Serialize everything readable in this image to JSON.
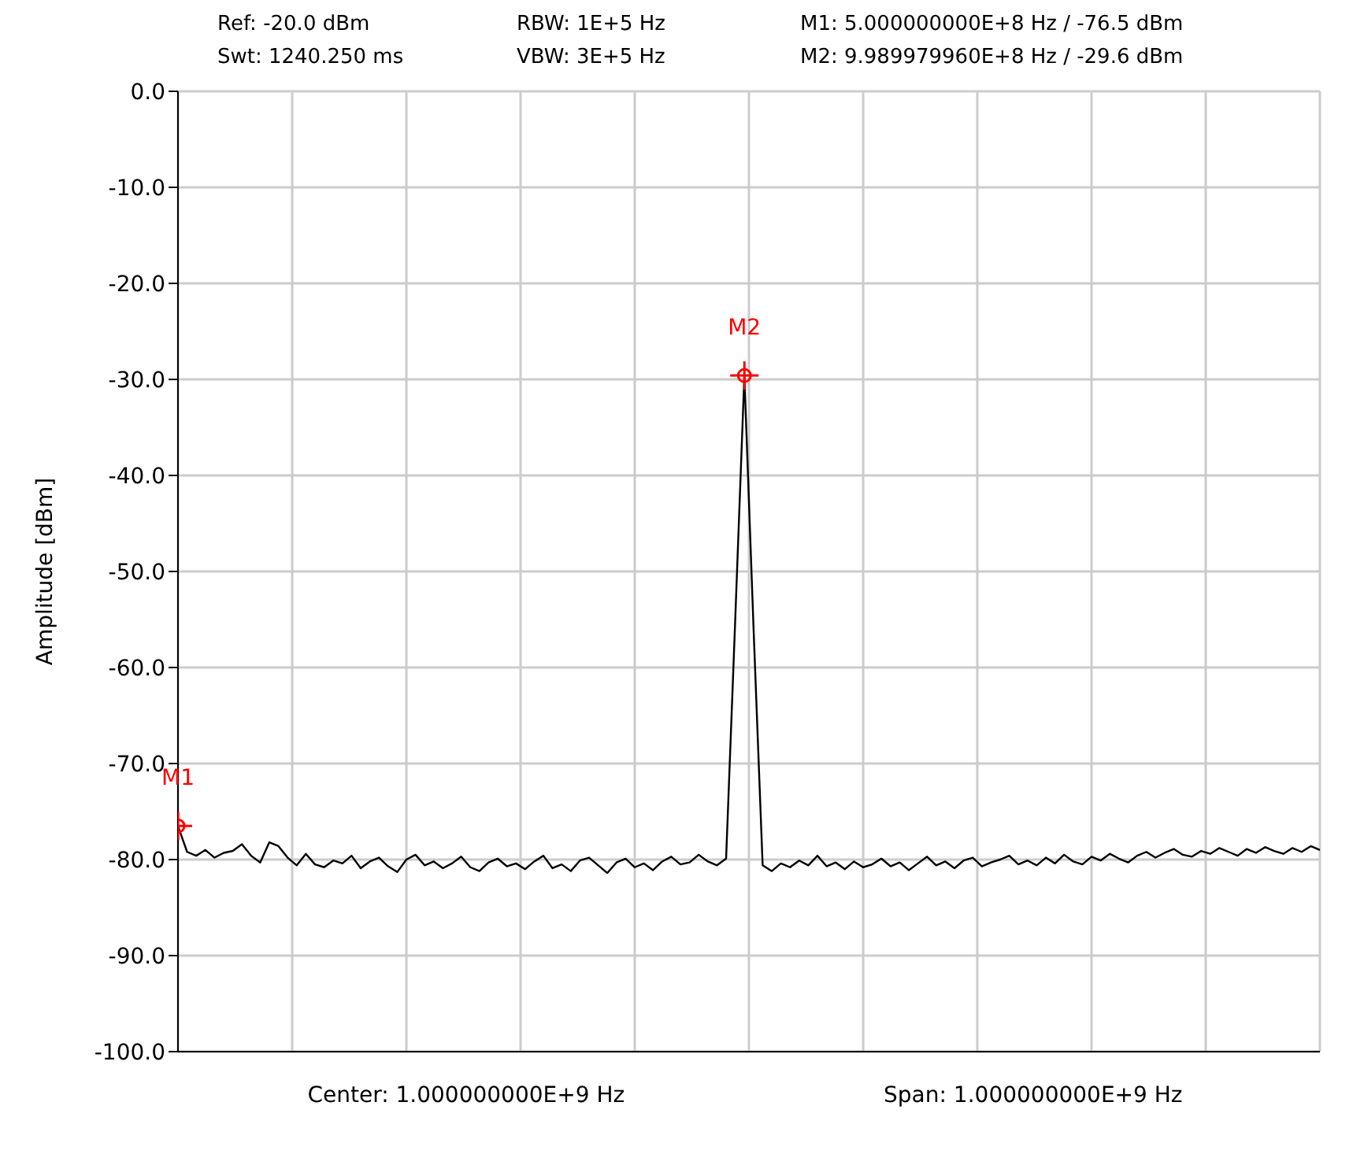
{
  "chart_data": {
    "type": "line",
    "ylabel": "Amplitude [dBm]",
    "annotations": [
      "Ref:  -20.0 dBm",
      "RBW: 1E+5 Hz",
      "M1: 5.000000000E+8 Hz / -76.5 dBm",
      "Swt: 1240.250 ms",
      "VBW: 3E+5 Hz",
      "M2: 9.989979960E+8 Hz / -29.6 dBm",
      "Center: 1.000000000E+9 Hz",
      "Span: 1.000000000E+9 Hz",
      "M1",
      "M2"
    ],
    "categories": [
      null,
      null,
      null,
      null,
      null,
      null,
      null,
      null,
      null,
      null,
      null,
      null,
      null,
      null,
      null,
      null,
      null,
      null,
      null,
      null,
      null,
      null,
      null,
      null,
      null,
      null,
      null,
      null,
      null,
      null,
      null,
      null,
      null,
      null,
      null,
      null,
      null,
      null,
      null,
      null,
      null,
      null,
      null,
      null,
      null,
      null,
      null,
      null,
      null,
      null,
      null,
      null,
      null,
      null,
      null,
      null,
      null,
      null,
      null,
      null,
      null,
      null,
      null,
      null,
      null,
      null,
      null,
      null,
      null,
      null,
      null,
      null,
      null,
      null,
      null,
      null,
      null,
      null,
      null,
      null,
      null,
      null,
      null,
      null,
      null,
      null,
      null,
      null,
      null,
      null,
      null,
      null,
      null,
      null,
      null,
      null,
      null,
      null,
      null,
      null,
      null,
      null,
      null,
      null,
      null,
      null,
      null,
      null,
      null,
      null,
      null,
      null,
      null,
      null,
      null,
      null,
      null,
      null,
      null,
      null,
      null,
      null,
      null,
      null,
      null,
      null
    ],
    "ylim": [
      -100,
      0
    ],
    "yticks": [
      {
        "value": 0,
        "label": "0.0"
      },
      {
        "value": -10,
        "label": "-10.0"
      },
      {
        "value": -20,
        "label": "-20.0"
      },
      {
        "value": -30,
        "label": "-30.0"
      },
      {
        "value": -40,
        "label": "-40.0"
      },
      {
        "value": -50,
        "label": "-50.0"
      },
      {
        "value": -60,
        "label": "-60.0"
      },
      {
        "value": -70,
        "label": "-70.0"
      },
      {
        "value": -80,
        "label": "-80.0"
      },
      {
        "value": -90,
        "label": "-90.0"
      },
      {
        "value": -100,
        "label": "-100.0"
      }
    ],
    "tick_labels": "y",
    "grid": true,
    "series": [
      {
        "color": "#000000",
        "marker": "none",
        "line_style": "solid",
        "values": [
          -76.5,
          -79.2,
          -79.6,
          -79.0,
          -79.8,
          -79.3,
          -79.1,
          -78.4,
          -79.6,
          -80.3,
          -78.2,
          -78.6,
          -79.8,
          -80.6,
          -79.4,
          -80.5,
          -80.8,
          -80.1,
          -80.4,
          -79.6,
          -80.9,
          -80.2,
          -79.8,
          -80.7,
          -81.3,
          -80.0,
          -79.5,
          -80.6,
          -80.2,
          -80.9,
          -80.4,
          -79.7,
          -80.8,
          -81.2,
          -80.3,
          -79.9,
          -80.7,
          -80.4,
          -81.0,
          -80.2,
          -79.6,
          -80.9,
          -80.5,
          -81.2,
          -80.1,
          -79.8,
          -80.6,
          -81.4,
          -80.3,
          -79.9,
          -80.8,
          -80.4,
          -81.1,
          -80.2,
          -79.7,
          -80.5,
          -80.3,
          -79.5,
          -80.2,
          -80.6,
          -79.9,
          -55.0,
          -29.6,
          -55.8,
          -80.6,
          -81.2,
          -80.4,
          -80.8,
          -80.1,
          -80.6,
          -79.6,
          -80.7,
          -80.3,
          -81.0,
          -80.2,
          -80.8,
          -80.5,
          -79.9,
          -80.7,
          -80.3,
          -81.1,
          -80.4,
          -79.7,
          -80.6,
          -80.2,
          -80.9,
          -80.1,
          -79.8,
          -80.7,
          -80.3,
          -80.0,
          -79.6,
          -80.5,
          -80.1,
          -80.6,
          -79.8,
          -80.4,
          -79.5,
          -80.2,
          -80.5,
          -79.7,
          -80.1,
          -79.4,
          -79.9,
          -80.3,
          -79.6,
          -79.2,
          -79.8,
          -79.3,
          -78.9,
          -79.5,
          -79.7,
          -79.1,
          -79.4,
          -78.8,
          -79.2,
          -79.6,
          -78.9,
          -79.3,
          -78.7,
          -79.1,
          -79.4,
          -78.8,
          -79.2,
          -78.6,
          -79.0
        ]
      },
      {
        "type": "scatter",
        "color": "#ff0000",
        "marker": "circle",
        "values": [
          -76.5,
          null,
          null,
          null,
          null,
          null,
          null,
          null,
          null,
          null,
          null,
          null,
          null,
          null,
          null,
          null,
          null,
          null,
          null,
          null,
          null,
          null,
          null,
          null,
          null,
          null,
          null,
          null,
          null,
          null,
          null,
          null,
          null,
          null,
          null,
          null,
          null,
          null,
          null,
          null,
          null,
          null,
          null,
          null,
          null,
          null,
          null,
          null,
          null,
          null,
          null,
          null,
          null,
          null,
          null,
          null,
          null,
          null,
          null,
          null,
          null,
          null,
          -29.6,
          null,
          null,
          null,
          null,
          null,
          null,
          null,
          null,
          null,
          null,
          null,
          null,
          null,
          null,
          null,
          null,
          null,
          null,
          null,
          null,
          null,
          null,
          null,
          null,
          null,
          null,
          null,
          null,
          null,
          null,
          null,
          null,
          null,
          null,
          null,
          null,
          null,
          null,
          null,
          null,
          null,
          null,
          null,
          null,
          null,
          null,
          null,
          null,
          null,
          null,
          null,
          null,
          null,
          null,
          null,
          null,
          null,
          null,
          null,
          null,
          null,
          null,
          null
        ]
      }
    ]
  }
}
